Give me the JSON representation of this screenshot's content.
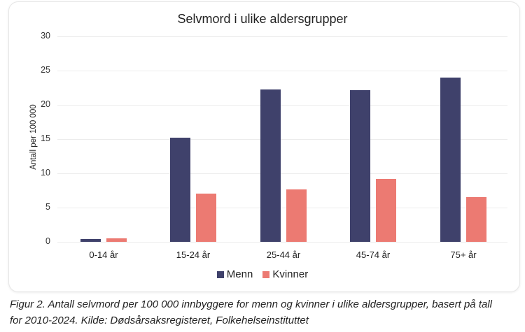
{
  "chart_data": {
    "type": "bar",
    "title": "Selvmord i ulike aldersgrupper",
    "xlabel": "",
    "ylabel": "Antall  per 100 000",
    "ylim": [
      0,
      30
    ],
    "yticks": [
      0,
      5,
      10,
      15,
      20,
      25,
      30
    ],
    "grid": true,
    "legend_position": "bottom",
    "categories": [
      "0-14 år",
      "15-24 år",
      "25-44 år",
      "45-74 år",
      "75+ år"
    ],
    "series": [
      {
        "name": "Menn",
        "color": "#3f416b",
        "values": [
          0.4,
          15.2,
          22.2,
          22.1,
          24.0
        ]
      },
      {
        "name": "Kvinner",
        "color": "#ec7a72",
        "values": [
          0.5,
          7.0,
          7.7,
          9.2,
          6.5
        ]
      }
    ]
  },
  "caption": {
    "line1": "Figur 2. Antall selvmord per 100 000 innbyggere for menn og kvinner i ulike aldersgrupper, basert på tall",
    "line2": "for 2010-2024. Kilde: Dødsårsaksregisteret, Folkehelseinstituttet"
  }
}
